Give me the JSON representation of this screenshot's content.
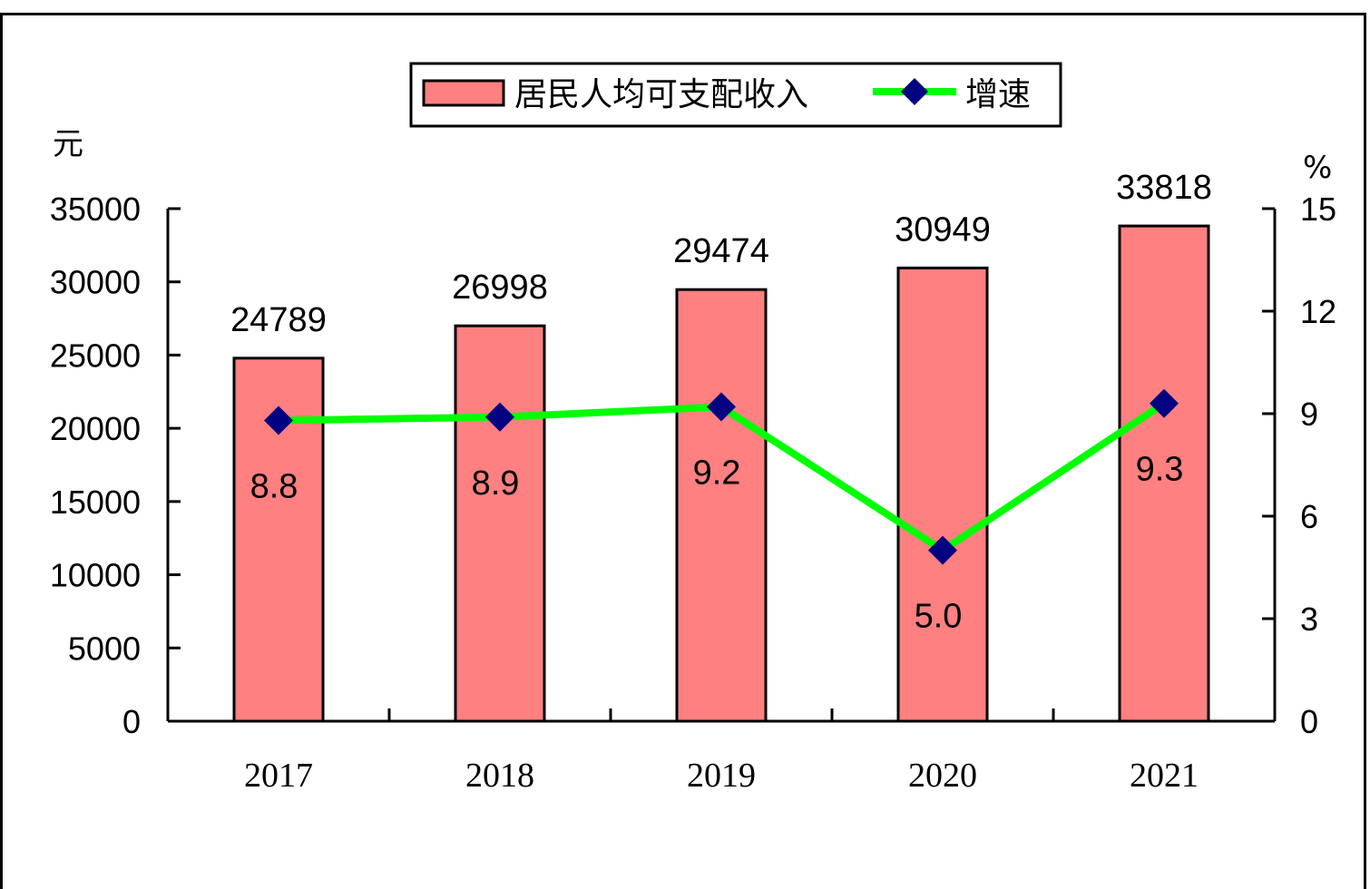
{
  "chart_data": {
    "type": "bar",
    "categories": [
      "2017",
      "2018",
      "2019",
      "2020",
      "2021"
    ],
    "series": [
      {
        "name": "居民人均可支配收入",
        "type": "bar",
        "axis": "left",
        "values": [
          24789,
          26998,
          29474,
          30949,
          33818
        ],
        "color": "#ff8080"
      },
      {
        "name": "增速",
        "type": "line",
        "axis": "right",
        "values": [
          8.8,
          8.9,
          9.2,
          5.0,
          9.3
        ],
        "color": "#00ff00",
        "marker_color": "#000080"
      }
    ],
    "bar_labels": [
      "24789",
      "26998",
      "29474",
      "30949",
      "33818"
    ],
    "line_labels": [
      "8.8",
      "8.9",
      "9.2",
      "5.0",
      "9.3"
    ],
    "y_left": {
      "unit": "元",
      "min": 0,
      "max": 35000,
      "ticks": [
        "0",
        "5000",
        "10000",
        "15000",
        "20000",
        "25000",
        "30000",
        "35000"
      ]
    },
    "y_right": {
      "unit": "%",
      "min": 0,
      "max": 15,
      "ticks": [
        "0",
        "3",
        "6",
        "9",
        "12",
        "15"
      ]
    },
    "legend": {
      "position": "top",
      "items": [
        "居民人均可支配收入",
        "增速"
      ]
    },
    "grid": false
  }
}
